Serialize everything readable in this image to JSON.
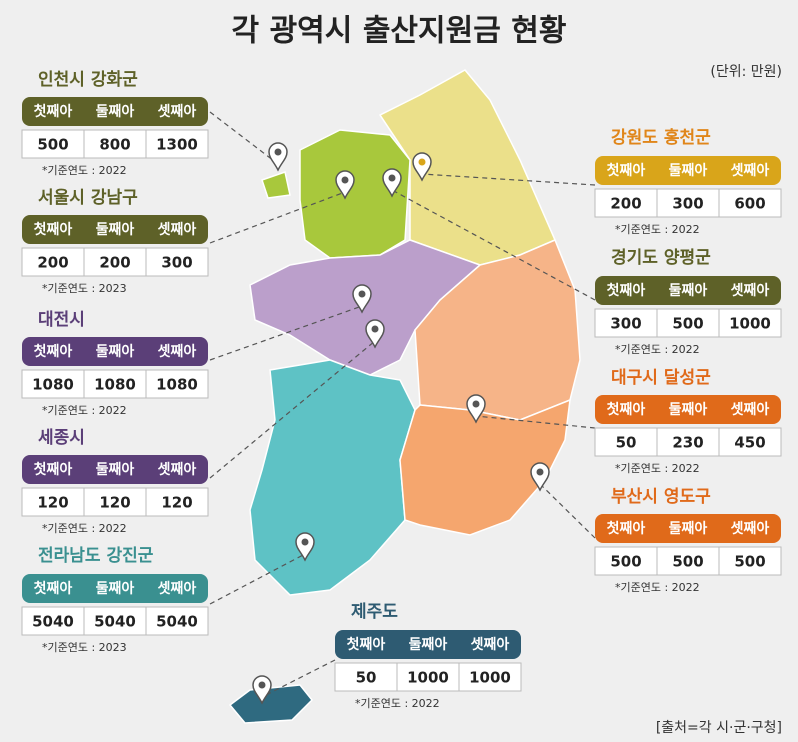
{
  "title": "각 광역시 출산지원금 현황",
  "unit": "(단위: 만원)",
  "source": "[출처=각 시·군·구청]",
  "columns": [
    "첫째아",
    "둘째아",
    "셋째아"
  ],
  "regions": [
    {
      "name": "인천시 강화군",
      "values": [
        "500",
        "800",
        "1300"
      ],
      "note": "*기준연도 : 2022"
    },
    {
      "name": "서울시 강남구",
      "values": [
        "200",
        "200",
        "300"
      ],
      "note": "*기준연도 : 2023"
    },
    {
      "name": "대전시",
      "values": [
        "1080",
        "1080",
        "1080"
      ],
      "note": "*기준연도 : 2022"
    },
    {
      "name": "세종시",
      "values": [
        "120",
        "120",
        "120"
      ],
      "note": "*기준연도 : 2022"
    },
    {
      "name": "전라남도 강진군",
      "values": [
        "5040",
        "5040",
        "5040"
      ],
      "note": "*기준연도 : 2023"
    },
    {
      "name": "강원도 홍천군",
      "values": [
        "200",
        "300",
        "600"
      ],
      "note": "*기준연도 : 2022"
    },
    {
      "name": "경기도 양평군",
      "values": [
        "300",
        "500",
        "1000"
      ],
      "note": "*기준연도 : 2022"
    },
    {
      "name": "대구시 달성군",
      "values": [
        "50",
        "230",
        "450"
      ],
      "note": "*기준연도 : 2022"
    },
    {
      "name": "부산시 영도구",
      "values": [
        "500",
        "500",
        "500"
      ],
      "note": "*기준연도 : 2022"
    },
    {
      "name": "제주도",
      "values": [
        "50",
        "1000",
        "1000"
      ],
      "note": "*기준연도 : 2022"
    }
  ]
}
